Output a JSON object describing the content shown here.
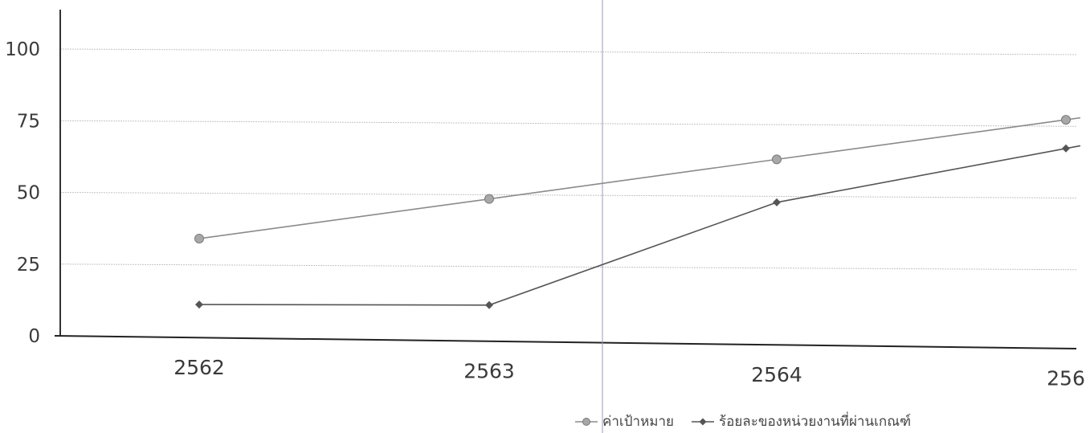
{
  "chart_data": {
    "type": "line",
    "categories": [
      "2562",
      "2563",
      "2564",
      "256"
    ],
    "y_ticks": [
      "0",
      "25",
      "50",
      "75",
      "100"
    ],
    "ylim": [
      0,
      110
    ],
    "grid": true,
    "legend_position": "bottom",
    "series": [
      {
        "name": "ค่าเป้าหมาย",
        "marker": "circle",
        "color": "#8a8a8a",
        "values": [
          34,
          48,
          62,
          76
        ]
      },
      {
        "name": "ร้อยละของหน่วยงานที่ผ่านเกณฑ์",
        "marker": "diamond",
        "color": "#555555",
        "values": [
          11,
          11,
          47,
          66
        ]
      }
    ]
  }
}
